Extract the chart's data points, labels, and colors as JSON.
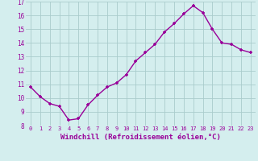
{
  "x": [
    0,
    1,
    2,
    3,
    4,
    5,
    6,
    7,
    8,
    9,
    10,
    11,
    12,
    13,
    14,
    15,
    16,
    17,
    18,
    19,
    20,
    21,
    22,
    23
  ],
  "y": [
    10.8,
    10.1,
    9.6,
    9.4,
    8.4,
    8.5,
    9.5,
    10.2,
    10.8,
    11.1,
    11.7,
    12.7,
    13.3,
    13.9,
    14.8,
    15.4,
    16.1,
    16.7,
    16.2,
    15.0,
    14.0,
    13.9,
    13.5,
    13.3
  ],
  "line_color": "#990099",
  "marker": "+",
  "marker_size": 3,
  "line_width": 1.0,
  "xlabel": "Windchill (Refroidissement éolien,°C)",
  "xlabel_fontsize": 6.5,
  "xlabel_color": "#990099",
  "tick_label_color": "#990099",
  "ylim": [
    8,
    17
  ],
  "yticks": [
    8,
    9,
    10,
    11,
    12,
    13,
    14,
    15,
    16,
    17
  ],
  "xticks": [
    0,
    1,
    2,
    3,
    4,
    5,
    6,
    7,
    8,
    9,
    10,
    11,
    12,
    13,
    14,
    15,
    16,
    17,
    18,
    19,
    20,
    21,
    22,
    23
  ],
  "background_color": "#d4eeee",
  "grid_color": "#aacccc",
  "tick_fontsize": 5.5,
  "xtick_fontsize": 5.0
}
